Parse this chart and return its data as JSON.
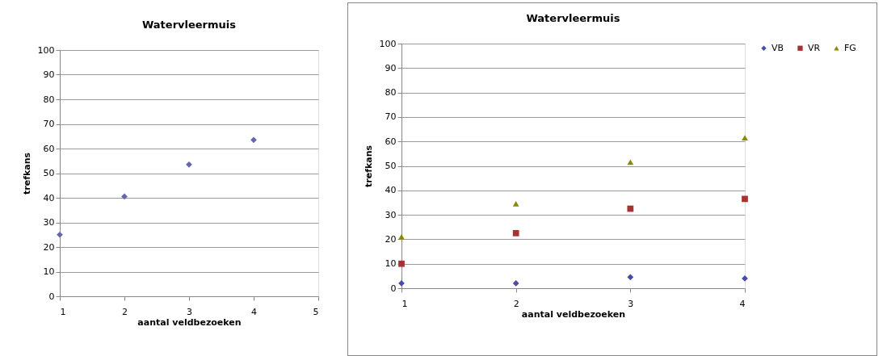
{
  "chart_data": [
    {
      "type": "scatter",
      "title": "Watervleermuis",
      "xlabel": "aantal veldbezoeken",
      "ylabel": "trefkans",
      "x": [
        1,
        2,
        3,
        4
      ],
      "values": [
        25,
        40.5,
        53.5,
        63.5
      ],
      "color": "#6667ab",
      "marker": "diamond",
      "xlim": [
        1,
        5
      ],
      "xticks": [
        1,
        2,
        3,
        4,
        5
      ],
      "ylim": [
        0,
        100
      ],
      "yticks": [
        0,
        10,
        20,
        30,
        40,
        50,
        60,
        70,
        80,
        90,
        100
      ],
      "grid": "y"
    },
    {
      "type": "scatter",
      "title": "Watervleermuis",
      "xlabel": "aantal veldbezoeken",
      "ylabel": "trefkans",
      "x": [
        1,
        2,
        3,
        4
      ],
      "series": [
        {
          "name": "VB",
          "color": "#4a4aa8",
          "marker": "diamond",
          "values": [
            2,
            2,
            4.5,
            4
          ]
        },
        {
          "name": "VR",
          "color": "#a83232",
          "marker": "square",
          "values": [
            10,
            22.5,
            32.5,
            36.5
          ]
        },
        {
          "name": "FG",
          "color": "#8a8a00",
          "marker": "triangle",
          "values": [
            21,
            34.5,
            51.5,
            61.5
          ]
        }
      ],
      "xlim": [
        1,
        4
      ],
      "xticks": [
        1,
        2,
        3,
        4
      ],
      "ylim": [
        0,
        100
      ],
      "yticks": [
        0,
        10,
        20,
        30,
        40,
        50,
        60,
        70,
        80,
        90,
        100
      ],
      "grid": "y",
      "legend": "right"
    }
  ]
}
